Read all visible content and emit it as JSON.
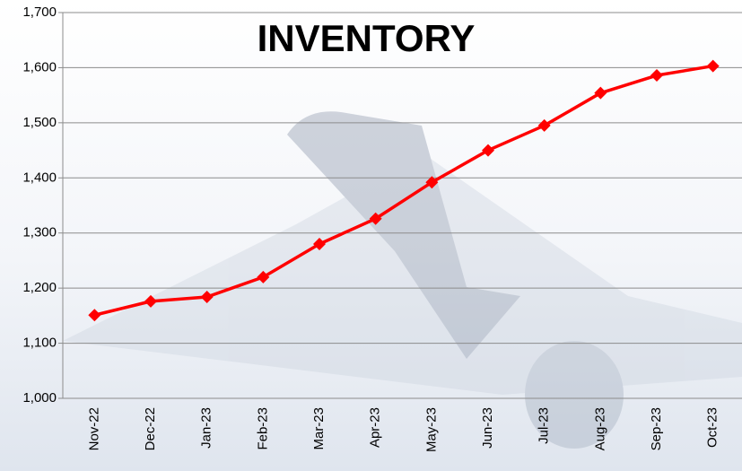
{
  "chart_data": {
    "type": "line",
    "title": "INVENTORY",
    "categories": [
      "Nov-22",
      "Dec-22",
      "Jan-23",
      "Feb-23",
      "Mar-23",
      "Apr-23",
      "May-23",
      "Jun-23",
      "Jul-23",
      "Aug-23",
      "Sep-23",
      "Oct-23"
    ],
    "series": [
      {
        "name": "Inventory",
        "color": "#ff0000",
        "values": [
          1151,
          1176,
          1184,
          1220,
          1280,
          1326,
          1392,
          1450,
          1495,
          1554,
          1586,
          1603
        ]
      }
    ],
    "ylim": [
      1000,
      1700
    ],
    "yticks": [
      {
        "value": 1000,
        "label": "1,000"
      },
      {
        "value": 1100,
        "label": "1,100"
      },
      {
        "value": 1200,
        "label": "1,200"
      },
      {
        "value": 1300,
        "label": "1,300"
      },
      {
        "value": 1400,
        "label": "1,400"
      },
      {
        "value": 1500,
        "label": "1,500"
      },
      {
        "value": 1600,
        "label": "1,600"
      },
      {
        "value": 1700,
        "label": "1,700"
      }
    ],
    "grid": true
  }
}
